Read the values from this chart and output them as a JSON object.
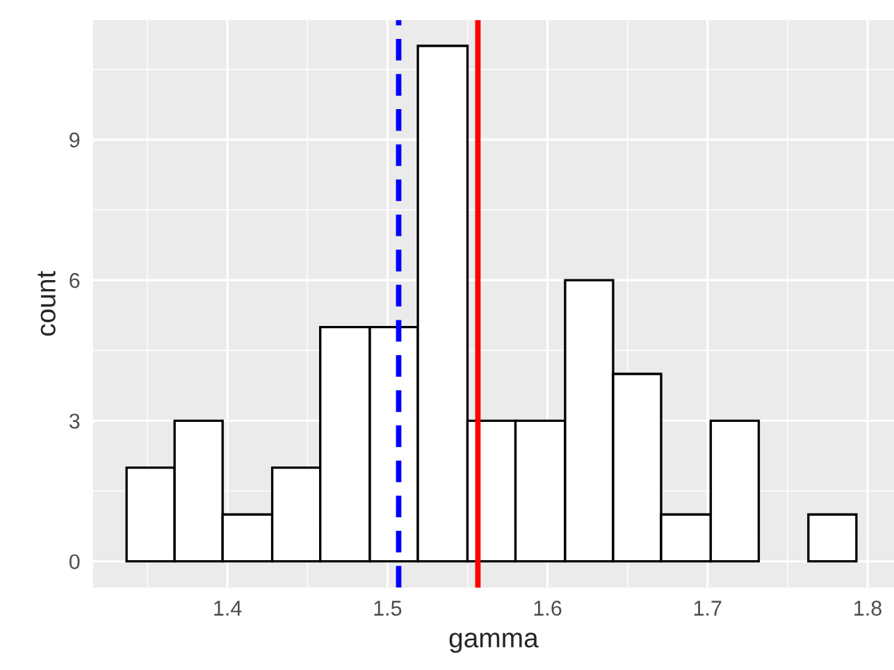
{
  "chart_data": {
    "type": "histogram",
    "xlabel": "gamma",
    "ylabel": "count",
    "bins": [
      1.337,
      1.367,
      1.397,
      1.428,
      1.458,
      1.489,
      1.519,
      1.55,
      1.58,
      1.611,
      1.641,
      1.671,
      1.702,
      1.732,
      1.763,
      1.793
    ],
    "values": [
      2,
      3,
      1,
      2,
      5,
      5,
      11,
      3,
      3,
      6,
      4,
      1,
      3,
      0,
      1
    ],
    "color": "#ffffff",
    "xlim": [
      1.316,
      1.8165
    ],
    "ylim": [
      -0.56,
      11.55
    ],
    "xticks": [
      1.4,
      1.5,
      1.6,
      1.7,
      1.8
    ],
    "yticks": [
      0,
      3,
      6,
      9
    ],
    "grid": true,
    "ref_lines": [
      {
        "axis": "x",
        "value": 1.507,
        "color": "#0000ff",
        "line_style": "dashed"
      },
      {
        "axis": "x",
        "value": 1.5565,
        "color": "#ff0000",
        "line_style": "solid"
      }
    ]
  }
}
